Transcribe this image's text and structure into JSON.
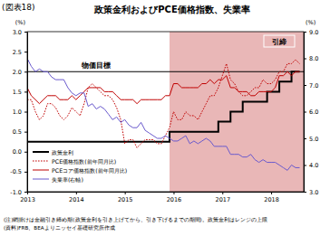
{
  "chart_data": {
    "type": "line",
    "figure_number": "(図表18)",
    "title": "政策金利およびPCE価格指数、失業率",
    "y_label": "(%)",
    "y2_label": "(%)",
    "x": [
      2013,
      2013.083,
      2013.167,
      2013.25,
      2013.333,
      2013.417,
      2013.5,
      2013.583,
      2013.667,
      2013.75,
      2013.833,
      2013.917,
      2014,
      2014.083,
      2014.167,
      2014.25,
      2014.333,
      2014.417,
      2014.5,
      2014.583,
      2014.667,
      2014.75,
      2014.833,
      2014.917,
      2015,
      2015.083,
      2015.167,
      2015.25,
      2015.333,
      2015.417,
      2015.5,
      2015.583,
      2015.667,
      2015.75,
      2015.833,
      2015.917,
      2016,
      2016.083,
      2016.167,
      2016.25,
      2016.333,
      2016.417,
      2016.5,
      2016.583,
      2016.667,
      2016.75,
      2016.833,
      2016.917,
      2017,
      2017.083,
      2017.167,
      2017.25,
      2017.333,
      2017.417,
      2017.5,
      2017.583,
      2017.667,
      2017.75,
      2017.833,
      2017.917,
      2018,
      2018.083,
      2018.167,
      2018.25,
      2018.333,
      2018.417,
      2018.5,
      2018.583
    ],
    "xlim": [
      2013,
      2018.667
    ],
    "xticks": [
      2013,
      2014,
      2015,
      2016,
      2017,
      2018
    ],
    "ylim": [
      -1,
      3
    ],
    "yticks": [
      {
        "value": -1,
        "label": "-1.0"
      },
      {
        "value": -0.5,
        "label": "-0.5"
      },
      {
        "value": 0,
        "label": "0.0"
      },
      {
        "value": 0.5,
        "label": "0.5"
      },
      {
        "value": 1,
        "label": "1.0"
      },
      {
        "value": 1.5,
        "label": "1.5"
      },
      {
        "value": 2,
        "label": "2.0"
      },
      {
        "value": 2.5,
        "label": "2.5"
      },
      {
        "value": 3,
        "label": "3.0"
      }
    ],
    "y2lim": [
      3,
      9
    ],
    "y2ticks": [
      {
        "value": 3,
        "label": "3.0"
      },
      {
        "value": 4,
        "label": "4.0"
      },
      {
        "value": 5,
        "label": "5.0"
      },
      {
        "value": 6,
        "label": "6.0"
      },
      {
        "value": 7,
        "label": "7.0"
      },
      {
        "value": 8,
        "label": "8.0"
      },
      {
        "value": 9,
        "label": "9.0"
      }
    ],
    "grid": false,
    "legend": "lower left",
    "shaded_range": [
      2015.917,
      2018.667
    ],
    "shaded_label": "引締",
    "target": {
      "value": 2,
      "label": "物価目標"
    },
    "series": [
      {
        "name": "政策金利",
        "color": "#000000",
        "line_style": "step",
        "values": [
          0.25,
          0.25,
          0.25,
          0.25,
          0.25,
          0.25,
          0.25,
          0.25,
          0.25,
          0.25,
          0.25,
          0.25,
          0.25,
          0.25,
          0.25,
          0.25,
          0.25,
          0.25,
          0.25,
          0.25,
          0.25,
          0.25,
          0.25,
          0.25,
          0.25,
          0.25,
          0.25,
          0.25,
          0.25,
          0.25,
          0.25,
          0.25,
          0.25,
          0.25,
          0.25,
          0.5,
          0.5,
          0.5,
          0.5,
          0.5,
          0.5,
          0.5,
          0.5,
          0.5,
          0.5,
          0.5,
          0.5,
          0.75,
          0.75,
          0.75,
          1,
          1,
          1,
          1.25,
          1.25,
          1.25,
          1.25,
          1.25,
          1.25,
          1.5,
          1.5,
          1.5,
          1.75,
          1.75,
          1.75,
          2,
          2,
          2
        ]
      },
      {
        "name": "PCE価格指数(前年同月比)",
        "color": "#c00000",
        "line_style": "dotted",
        "values": [
          1.3,
          1.3,
          1.0,
          0.8,
          0.9,
          1.2,
          1.2,
          1.1,
          0.9,
          0.8,
          0.9,
          1.1,
          1.0,
          0.9,
          1.2,
          1.6,
          1.7,
          1.6,
          1.5,
          1.4,
          1.4,
          1.3,
          1.1,
          0.8,
          0.2,
          0.3,
          0.3,
          0.1,
          0.2,
          0.3,
          0.3,
          0.3,
          0.2,
          0.2,
          0.4,
          0.6,
          1.0,
          0.8,
          0.8,
          1.0,
          0.9,
          0.9,
          0.8,
          1.0,
          1.2,
          1.4,
          1.4,
          1.6,
          1.9,
          2.2,
          1.8,
          1.7,
          1.5,
          1.4,
          1.4,
          1.5,
          1.6,
          1.6,
          1.8,
          1.7,
          1.7,
          1.8,
          2.0,
          2.0,
          2.2,
          2.2,
          2.3,
          2.2
        ]
      },
      {
        "name": "PCEコア価格指数(前年同月比)",
        "color": "#c00000",
        "line_style": "solid",
        "values": [
          1.6,
          1.4,
          1.3,
          1.2,
          1.3,
          1.4,
          1.4,
          1.4,
          1.3,
          1.3,
          1.3,
          1.4,
          1.3,
          1.4,
          1.5,
          1.6,
          1.6,
          1.6,
          1.6,
          1.5,
          1.5,
          1.5,
          1.4,
          1.3,
          1.3,
          1.3,
          1.3,
          1.2,
          1.3,
          1.3,
          1.3,
          1.3,
          1.3,
          1.3,
          1.4,
          1.4,
          1.7,
          1.7,
          1.6,
          1.6,
          1.6,
          1.6,
          1.6,
          1.7,
          1.7,
          1.8,
          1.7,
          1.8,
          1.8,
          1.9,
          1.6,
          1.6,
          1.5,
          1.5,
          1.5,
          1.4,
          1.4,
          1.5,
          1.5,
          1.5,
          1.5,
          1.6,
          1.9,
          1.9,
          2.0,
          1.9,
          2.0,
          2.0
        ]
      },
      {
        "name": "失業率(右軸)",
        "color": "#6a5acd",
        "line_style": "solid",
        "axis": "y2",
        "values": [
          8.0,
          7.7,
          7.5,
          7.6,
          7.5,
          7.5,
          7.3,
          7.2,
          7.2,
          7.2,
          6.9,
          6.7,
          6.6,
          6.7,
          6.7,
          6.2,
          6.3,
          6.1,
          6.2,
          6.1,
          5.9,
          5.7,
          5.8,
          5.6,
          5.7,
          5.5,
          5.4,
          5.4,
          5.6,
          5.3,
          5.2,
          5.1,
          5.0,
          5.0,
          5.1,
          5.0,
          4.9,
          4.9,
          5.0,
          5.1,
          4.8,
          4.9,
          4.8,
          4.9,
          5.0,
          4.9,
          4.7,
          4.7,
          4.7,
          4.7,
          4.4,
          4.4,
          4.4,
          4.3,
          4.3,
          4.4,
          4.2,
          4.1,
          4.2,
          4.1,
          4.1,
          4.1,
          4.0,
          3.9,
          3.8,
          4.0,
          3.9,
          3.9
        ]
      }
    ],
    "notes": [
      "(注)網掛けは金融引き締め期(政策金利を引き上げてから、引き下げるまでの期間)。政策金利はレンジの上限",
      "(資料)FRB、BEAよりニッセイ基礎研究所作成"
    ]
  }
}
